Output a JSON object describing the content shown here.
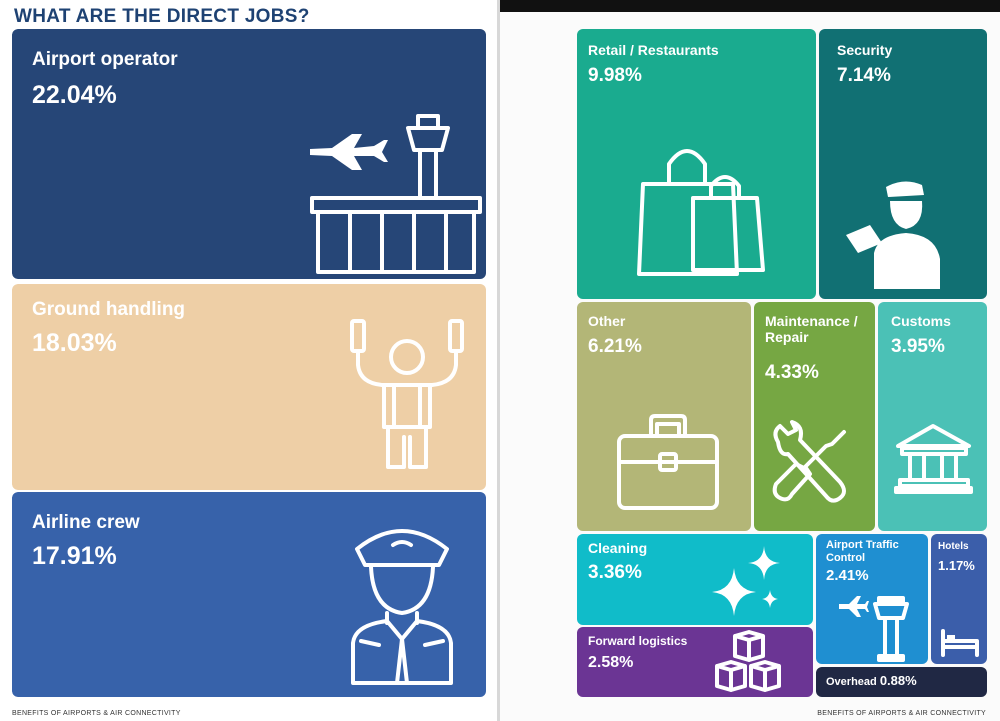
{
  "heading": "WHAT ARE THE DIRECT JOBS?",
  "footer_left": "BENEFITS OF AIRPORTS & AIR CONNECTIVITY",
  "footer_right": "BENEFITS OF AIRPORTS & AIR CONNECTIVITY",
  "colors": {
    "airport_operator": "#264677",
    "ground_handling": "#eecfa6",
    "airline_crew": "#3762aa",
    "retail": "#1aab8f",
    "security": "#117073",
    "other": "#b3b677",
    "maintenance": "#76a743",
    "customs": "#4bc1b6",
    "cleaning": "#10bcc9",
    "forward_logistics": "#6b3594",
    "atc": "#1f8fd1",
    "hotels": "#3b5eaa",
    "overhead": "#202844"
  },
  "chart_data": {
    "type": "treemap",
    "title": "WHAT ARE THE DIRECT JOBS?",
    "unit": "%",
    "items": [
      {
        "key": "airport_operator",
        "label": "Airport operator",
        "value": 22.04,
        "value_label": "22.04%",
        "icon": "control-tower-plane-icon"
      },
      {
        "key": "ground_handling",
        "label": "Ground handling",
        "value": 18.03,
        "value_label": "18.03%",
        "icon": "ground-marshaller-icon"
      },
      {
        "key": "airline_crew",
        "label": "Airline crew",
        "value": 17.91,
        "value_label": "17.91%",
        "icon": "pilot-icon"
      },
      {
        "key": "retail",
        "label": "Retail / Restaurants",
        "value": 9.98,
        "value_label": "9.98%",
        "icon": "shopping-bags-icon"
      },
      {
        "key": "security",
        "label": "Security",
        "value": 7.14,
        "value_label": "7.14%",
        "icon": "security-officer-icon"
      },
      {
        "key": "other",
        "label": "Other",
        "value": 6.21,
        "value_label": "6.21%",
        "icon": "briefcase-icon"
      },
      {
        "key": "maintenance",
        "label": "Maintenance / Repair",
        "value": 4.33,
        "value_label": "4.33%",
        "icon": "wrench-screwdriver-icon"
      },
      {
        "key": "customs",
        "label": "Customs",
        "value": 3.95,
        "value_label": "3.95%",
        "icon": "government-building-icon"
      },
      {
        "key": "cleaning",
        "label": "Cleaning",
        "value": 3.36,
        "value_label": "3.36%",
        "icon": "sparkles-icon"
      },
      {
        "key": "forward_logistics",
        "label": "Forward logistics",
        "value": 2.58,
        "value_label": "2.58%",
        "icon": "stacked-boxes-icon"
      },
      {
        "key": "atc",
        "label": "Airport Traffic Control",
        "value": 2.41,
        "value_label": "2.41%",
        "icon": "control-tower-icon"
      },
      {
        "key": "hotels",
        "label": "Hotels",
        "value": 1.17,
        "value_label": "1.17%",
        "icon": "bed-icon"
      },
      {
        "key": "overhead",
        "label": "Overhead",
        "value": 0.88,
        "value_label": "0.88%",
        "icon": ""
      }
    ]
  }
}
